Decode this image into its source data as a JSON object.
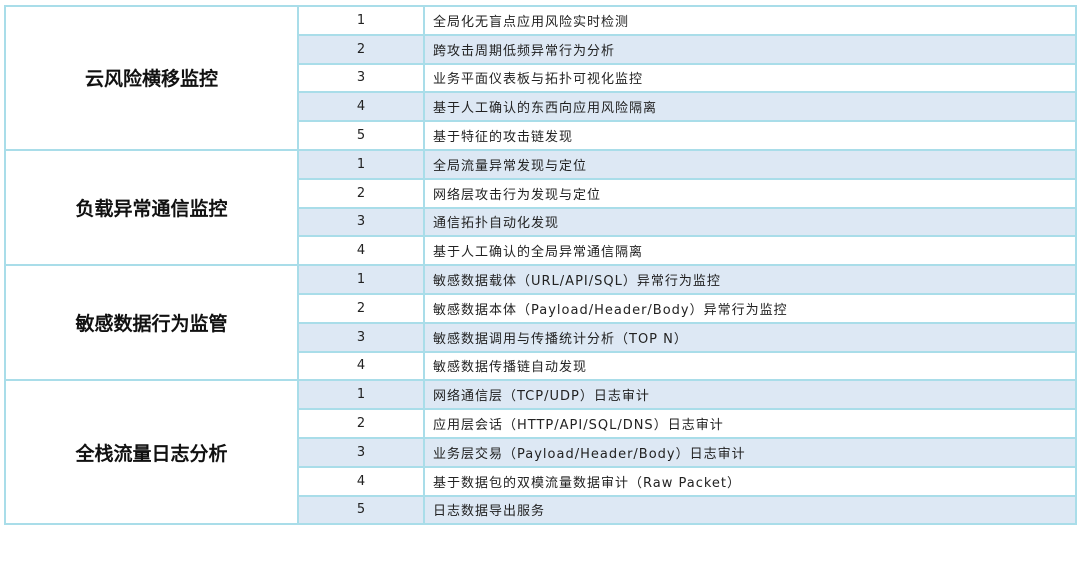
{
  "colors": {
    "border": "#a9dde9",
    "alt_row": "#dde8f4"
  },
  "groups": [
    {
      "title": "云风险横移监控",
      "items": [
        {
          "n": "1",
          "text": "全局化无盲点应用风险实时检测"
        },
        {
          "n": "2",
          "text": "跨攻击周期低频异常行为分析"
        },
        {
          "n": "3",
          "text": "业务平面仪表板与拓扑可视化监控"
        },
        {
          "n": "4",
          "text": "基于人工确认的东西向应用风险隔离"
        },
        {
          "n": "5",
          "text": "基于特征的攻击链发现"
        }
      ]
    },
    {
      "title": "负载异常通信监控",
      "items": [
        {
          "n": "1",
          "text": "全局流量异常发现与定位"
        },
        {
          "n": "2",
          "text": "网络层攻击行为发现与定位"
        },
        {
          "n": "3",
          "text": "通信拓扑自动化发现"
        },
        {
          "n": "4",
          "text": "基于人工确认的全局异常通信隔离"
        }
      ]
    },
    {
      "title": "敏感数据行为监管",
      "items": [
        {
          "n": "1",
          "text": "敏感数据载体（URL/API/SQL）异常行为监控"
        },
        {
          "n": "2",
          "text": "敏感数据本体（Payload/Header/Body）异常行为监控"
        },
        {
          "n": "3",
          "text": "敏感数据调用与传播统计分析（TOP N）"
        },
        {
          "n": "4",
          "text": "敏感数据传播链自动发现"
        }
      ]
    },
    {
      "title": "全栈流量日志分析",
      "items": [
        {
          "n": "1",
          "text": "网络通信层（TCP/UDP）日志审计"
        },
        {
          "n": "2",
          "text": "应用层会话（HTTP/API/SQL/DNS）日志审计"
        },
        {
          "n": "3",
          "text": "业务层交易（Payload/Header/Body）日志审计"
        },
        {
          "n": "4",
          "text": "基于数据包的双模流量数据审计（Raw Packet）"
        },
        {
          "n": "5",
          "text": "日志数据导出服务"
        }
      ]
    }
  ]
}
